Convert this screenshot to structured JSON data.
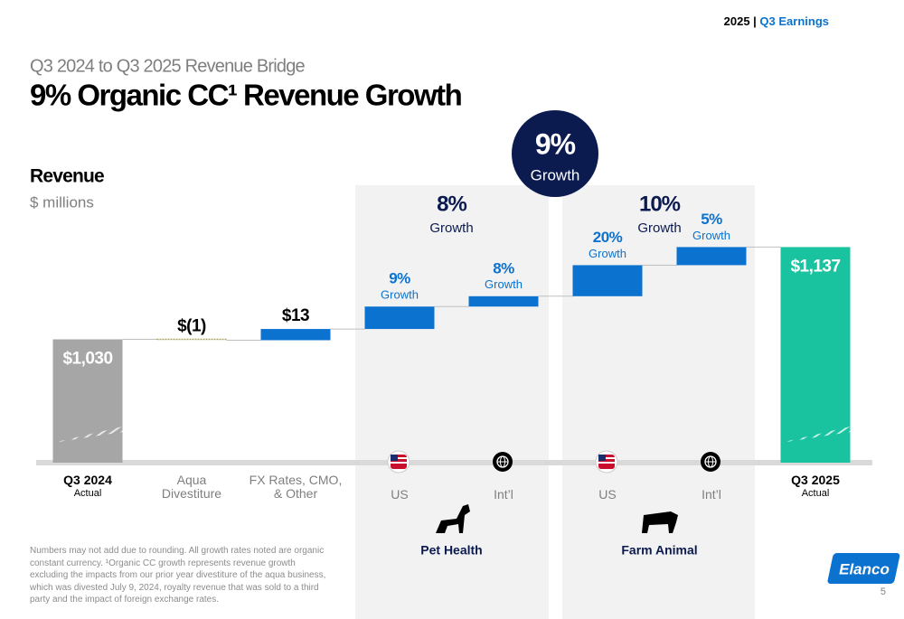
{
  "header": {
    "year": "2025 |",
    "section": "Q3 Earnings"
  },
  "chart_data": {
    "type": "waterfall",
    "subtitle": "Q3 2024 to Q3 2025 Revenue Bridge",
    "title": "9% Organic CC¹ Revenue Growth",
    "y_label": "Revenue",
    "y_unit": "$ millions",
    "categories": [
      "Q3 2024",
      "Aqua\nDivestiture",
      "FX Rates, CMO,\n& Other",
      "US",
      "Int’l",
      "US",
      "Int’l",
      "Q3 2025"
    ],
    "category_notes": [
      "Actual",
      null,
      null,
      null,
      null,
      null,
      null,
      "Actual"
    ],
    "measure": [
      "absolute",
      "relative",
      "relative",
      "relative",
      "relative",
      "relative",
      "relative",
      "total"
    ],
    "values": [
      1030,
      -1,
      13,
      26,
      12,
      36,
      21,
      1137
    ],
    "value_labels": [
      "$1,030",
      "$(1)",
      "$13",
      null,
      null,
      null,
      null,
      "$1,137"
    ],
    "growth": [
      null,
      null,
      null,
      "9%",
      "8%",
      "20%",
      "5%",
      null
    ],
    "growth_word": "Growth",
    "colors": {
      "absolute": "#a6a6a6",
      "relative": "#0b72d0",
      "negative": "#a8a060",
      "total": "#19c3a0"
    },
    "ylim": [
      887,
      1150
    ],
    "segments": [
      {
        "name": "Pet Health",
        "growth": "8%",
        "from": 3,
        "to": 4
      },
      {
        "name": "Farm Animal",
        "growth": "10%",
        "from": 5,
        "to": 6
      }
    ],
    "total_growth": "9%"
  },
  "footnote": "Numbers may not add due to rounding. All growth rates noted are organic constant currency. ¹Organic CC growth represents revenue growth excluding the impacts from our prior year divestiture of the aqua business, which was divested July 9, 2024, royalty revenue that was sold to a third party and the impact of foreign exchange rates.",
  "logo": "Elanco",
  "page_number": "5"
}
